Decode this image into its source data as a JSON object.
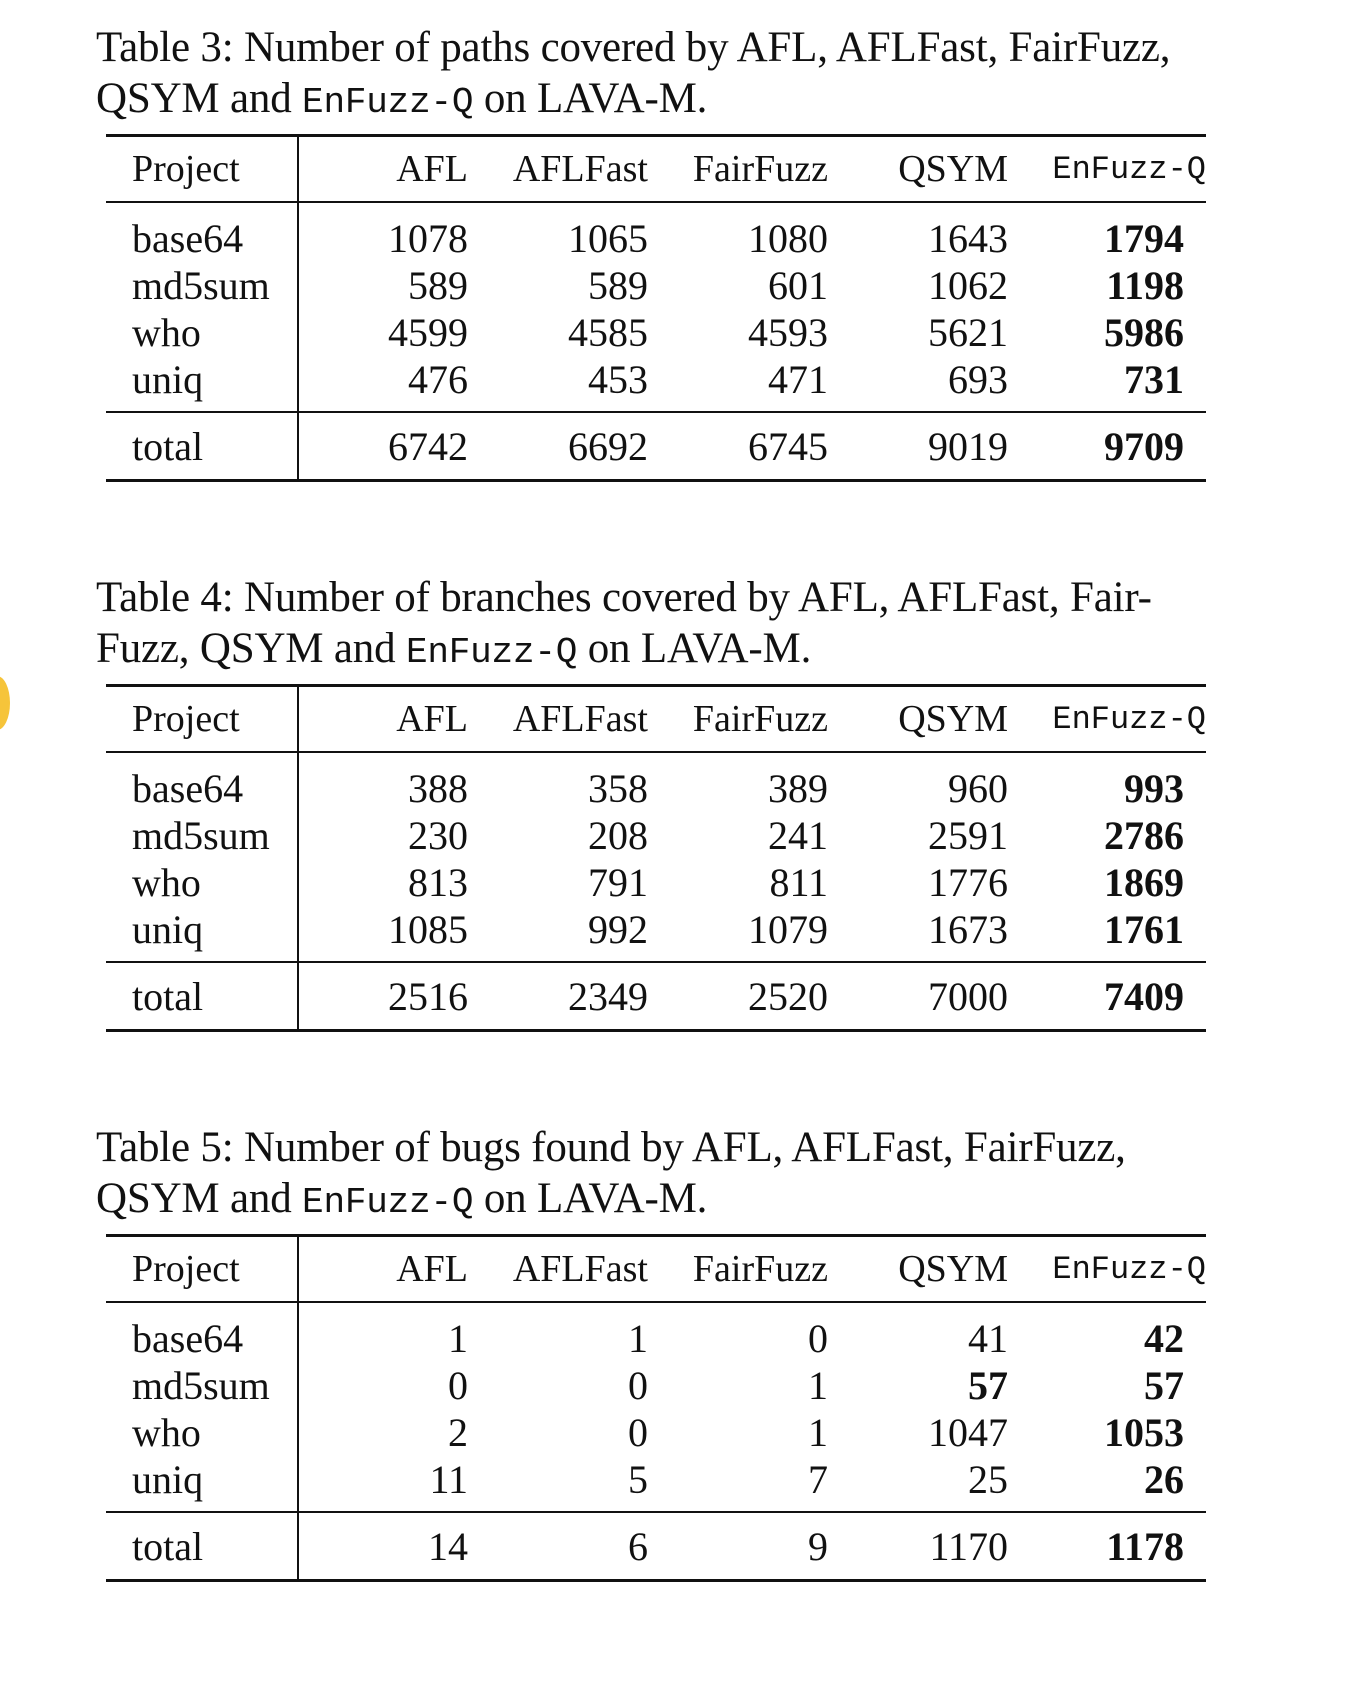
{
  "tables": [
    {
      "caption_pre": "Table 3: Number of paths covered by AFL, AFLFast, FairFuzz,",
      "caption_line2_pre": "QSYM and ",
      "caption_mono": "EnFuzz-Q",
      "caption_post": " on LAVA-M.",
      "headers": [
        "Project",
        "AFL",
        "AFLFast",
        "FairFuzz",
        "QSYM",
        "EnFuzz-Q"
      ],
      "rows": [
        {
          "project": "base64",
          "afl": "1078",
          "aflfast": "1065",
          "fairfuzz": "1080",
          "qsym": "1643",
          "enfuzzq": "1794"
        },
        {
          "project": "md5sum",
          "afl": "589",
          "aflfast": "589",
          "fairfuzz": "601",
          "qsym": "1062",
          "enfuzzq": "1198"
        },
        {
          "project": "who",
          "afl": "4599",
          "aflfast": "4585",
          "fairfuzz": "4593",
          "qsym": "5621",
          "enfuzzq": "5986"
        },
        {
          "project": "uniq",
          "afl": "476",
          "aflfast": "453",
          "fairfuzz": "471",
          "qsym": "693",
          "enfuzzq": "731"
        }
      ],
      "total": {
        "project": "total",
        "afl": "6742",
        "aflfast": "6692",
        "fairfuzz": "6745",
        "qsym": "9019",
        "enfuzzq": "9709"
      }
    },
    {
      "caption_pre": "Table 4: Number of branches covered by AFL, AFLFast, Fair-",
      "caption_line2_pre": "Fuzz, QSYM and ",
      "caption_mono": "EnFuzz-Q",
      "caption_post": " on LAVA-M.",
      "headers": [
        "Project",
        "AFL",
        "AFLFast",
        "FairFuzz",
        "QSYM",
        "EnFuzz-Q"
      ],
      "rows": [
        {
          "project": "base64",
          "afl": "388",
          "aflfast": "358",
          "fairfuzz": "389",
          "qsym": "960",
          "enfuzzq": "993"
        },
        {
          "project": "md5sum",
          "afl": "230",
          "aflfast": "208",
          "fairfuzz": "241",
          "qsym": "2591",
          "enfuzzq": "2786"
        },
        {
          "project": "who",
          "afl": "813",
          "aflfast": "791",
          "fairfuzz": "811",
          "qsym": "1776",
          "enfuzzq": "1869"
        },
        {
          "project": "uniq",
          "afl": "1085",
          "aflfast": "992",
          "fairfuzz": "1079",
          "qsym": "1673",
          "enfuzzq": "1761"
        }
      ],
      "total": {
        "project": "total",
        "afl": "2516",
        "aflfast": "2349",
        "fairfuzz": "2520",
        "qsym": "7000",
        "enfuzzq": "7409"
      }
    },
    {
      "caption_pre": "Table 5: Number of bugs found by AFL, AFLFast, FairFuzz,",
      "caption_line2_pre": "QSYM and ",
      "caption_mono": "EnFuzz-Q",
      "caption_post": " on LAVA-M.",
      "headers": [
        "Project",
        "AFL",
        "AFLFast",
        "FairFuzz",
        "QSYM",
        "EnFuzz-Q"
      ],
      "rows": [
        {
          "project": "base64",
          "afl": "1",
          "aflfast": "1",
          "fairfuzz": "0",
          "qsym": "41",
          "enfuzzq": "42"
        },
        {
          "project": "md5sum",
          "afl": "0",
          "aflfast": "0",
          "fairfuzz": "1",
          "qsym": "57",
          "enfuzzq": "57"
        },
        {
          "project": "who",
          "afl": "2",
          "aflfast": "0",
          "fairfuzz": "1",
          "qsym": "1047",
          "enfuzzq": "1053"
        },
        {
          "project": "uniq",
          "afl": "11",
          "aflfast": "5",
          "fairfuzz": "7",
          "qsym": "25",
          "enfuzzq": "26"
        }
      ],
      "total": {
        "project": "total",
        "afl": "14",
        "aflfast": "6",
        "fairfuzz": "9",
        "qsym": "1170",
        "enfuzzq": "1178"
      }
    }
  ]
}
